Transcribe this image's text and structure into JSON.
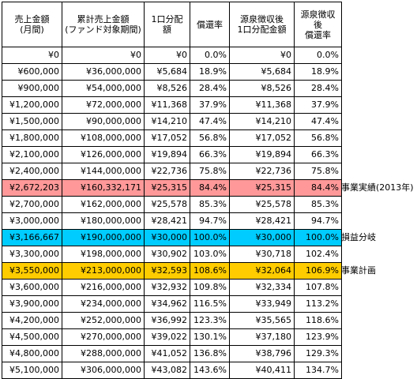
{
  "headers": [
    "売上金額\n(月間)",
    "累計売上金額\n(ファンド対象期間)",
    "1口分配\n額",
    "償還率",
    "源泉徴収後\n1口分配金額",
    "源泉徴収\n後\n償還率"
  ],
  "rows": [
    {
      "cells": [
        "¥0",
        "¥0",
        "¥0",
        "0.0%",
        "¥0",
        "0.0%"
      ],
      "highlight": "",
      "note": ""
    },
    {
      "cells": [
        "¥600,000",
        "¥36,000,000",
        "¥5,684",
        "18.9%",
        "¥5,684",
        "18.9%"
      ],
      "highlight": "",
      "note": ""
    },
    {
      "cells": [
        "¥900,000",
        "¥54,000,000",
        "¥8,526",
        "28.4%",
        "¥8,526",
        "28.4%"
      ],
      "highlight": "",
      "note": ""
    },
    {
      "cells": [
        "¥1,200,000",
        "¥72,000,000",
        "¥11,368",
        "37.9%",
        "¥11,368",
        "37.9%"
      ],
      "highlight": "",
      "note": ""
    },
    {
      "cells": [
        "¥1,500,000",
        "¥90,000,000",
        "¥14,210",
        "47.4%",
        "¥14,210",
        "47.4%"
      ],
      "highlight": "",
      "note": ""
    },
    {
      "cells": [
        "¥1,800,000",
        "¥108,000,000",
        "¥17,052",
        "56.8%",
        "¥17,052",
        "56.8%"
      ],
      "highlight": "",
      "note": ""
    },
    {
      "cells": [
        "¥2,100,000",
        "¥126,000,000",
        "¥19,894",
        "66.3%",
        "¥19,894",
        "66.3%"
      ],
      "highlight": "",
      "note": ""
    },
    {
      "cells": [
        "¥2,400,000",
        "¥144,000,000",
        "¥22,736",
        "75.8%",
        "¥22,736",
        "75.8%"
      ],
      "highlight": "",
      "note": ""
    },
    {
      "cells": [
        "¥2,672,203",
        "¥160,332,171",
        "¥25,315",
        "84.4%",
        "¥25,315",
        "84.4%"
      ],
      "highlight": "red",
      "note": "事業実績(2013年)"
    },
    {
      "cells": [
        "¥2,700,000",
        "¥162,000,000",
        "¥25,578",
        "85.3%",
        "¥25,578",
        "85.3%"
      ],
      "highlight": "",
      "note": ""
    },
    {
      "cells": [
        "¥3,000,000",
        "¥180,000,000",
        "¥28,421",
        "94.7%",
        "¥28,421",
        "94.7%"
      ],
      "highlight": "",
      "note": ""
    },
    {
      "cells": [
        "¥3,166,667",
        "¥190,000,000",
        "¥30,000",
        "100.0%",
        "¥30,000",
        "100.0%"
      ],
      "highlight": "blue",
      "note": "損益分岐"
    },
    {
      "cells": [
        "¥3,300,000",
        "¥198,000,000",
        "¥30,902",
        "103.0%",
        "¥30,718",
        "102.4%"
      ],
      "highlight": "",
      "note": ""
    },
    {
      "cells": [
        "¥3,550,000",
        "¥213,000,000",
        "¥32,593",
        "108.6%",
        "¥32,064",
        "106.9%"
      ],
      "highlight": "orange",
      "note": "事業計画"
    },
    {
      "cells": [
        "¥3,600,000",
        "¥216,000,000",
        "¥32,932",
        "109.8%",
        "¥32,334",
        "107.8%"
      ],
      "highlight": "",
      "note": ""
    },
    {
      "cells": [
        "¥3,900,000",
        "¥234,000,000",
        "¥34,962",
        "116.5%",
        "¥33,949",
        "113.2%"
      ],
      "highlight": "",
      "note": ""
    },
    {
      "cells": [
        "¥4,200,000",
        "¥252,000,000",
        "¥36,992",
        "123.3%",
        "¥35,565",
        "118.6%"
      ],
      "highlight": "",
      "note": ""
    },
    {
      "cells": [
        "¥4,500,000",
        "¥270,000,000",
        "¥39,022",
        "130.1%",
        "¥37,180",
        "123.9%"
      ],
      "highlight": "",
      "note": ""
    },
    {
      "cells": [
        "¥4,800,000",
        "¥288,000,000",
        "¥41,052",
        "136.8%",
        "¥38,796",
        "129.3%"
      ],
      "highlight": "",
      "note": ""
    },
    {
      "cells": [
        "¥5,100,000",
        "¥306,000,000",
        "¥43,082",
        "143.6%",
        "¥40,411",
        "134.7%"
      ],
      "highlight": "",
      "note": ""
    }
  ],
  "colors": {
    "red": "#ff9999",
    "blue": "#00ccff",
    "orange": "#ffcc00"
  }
}
